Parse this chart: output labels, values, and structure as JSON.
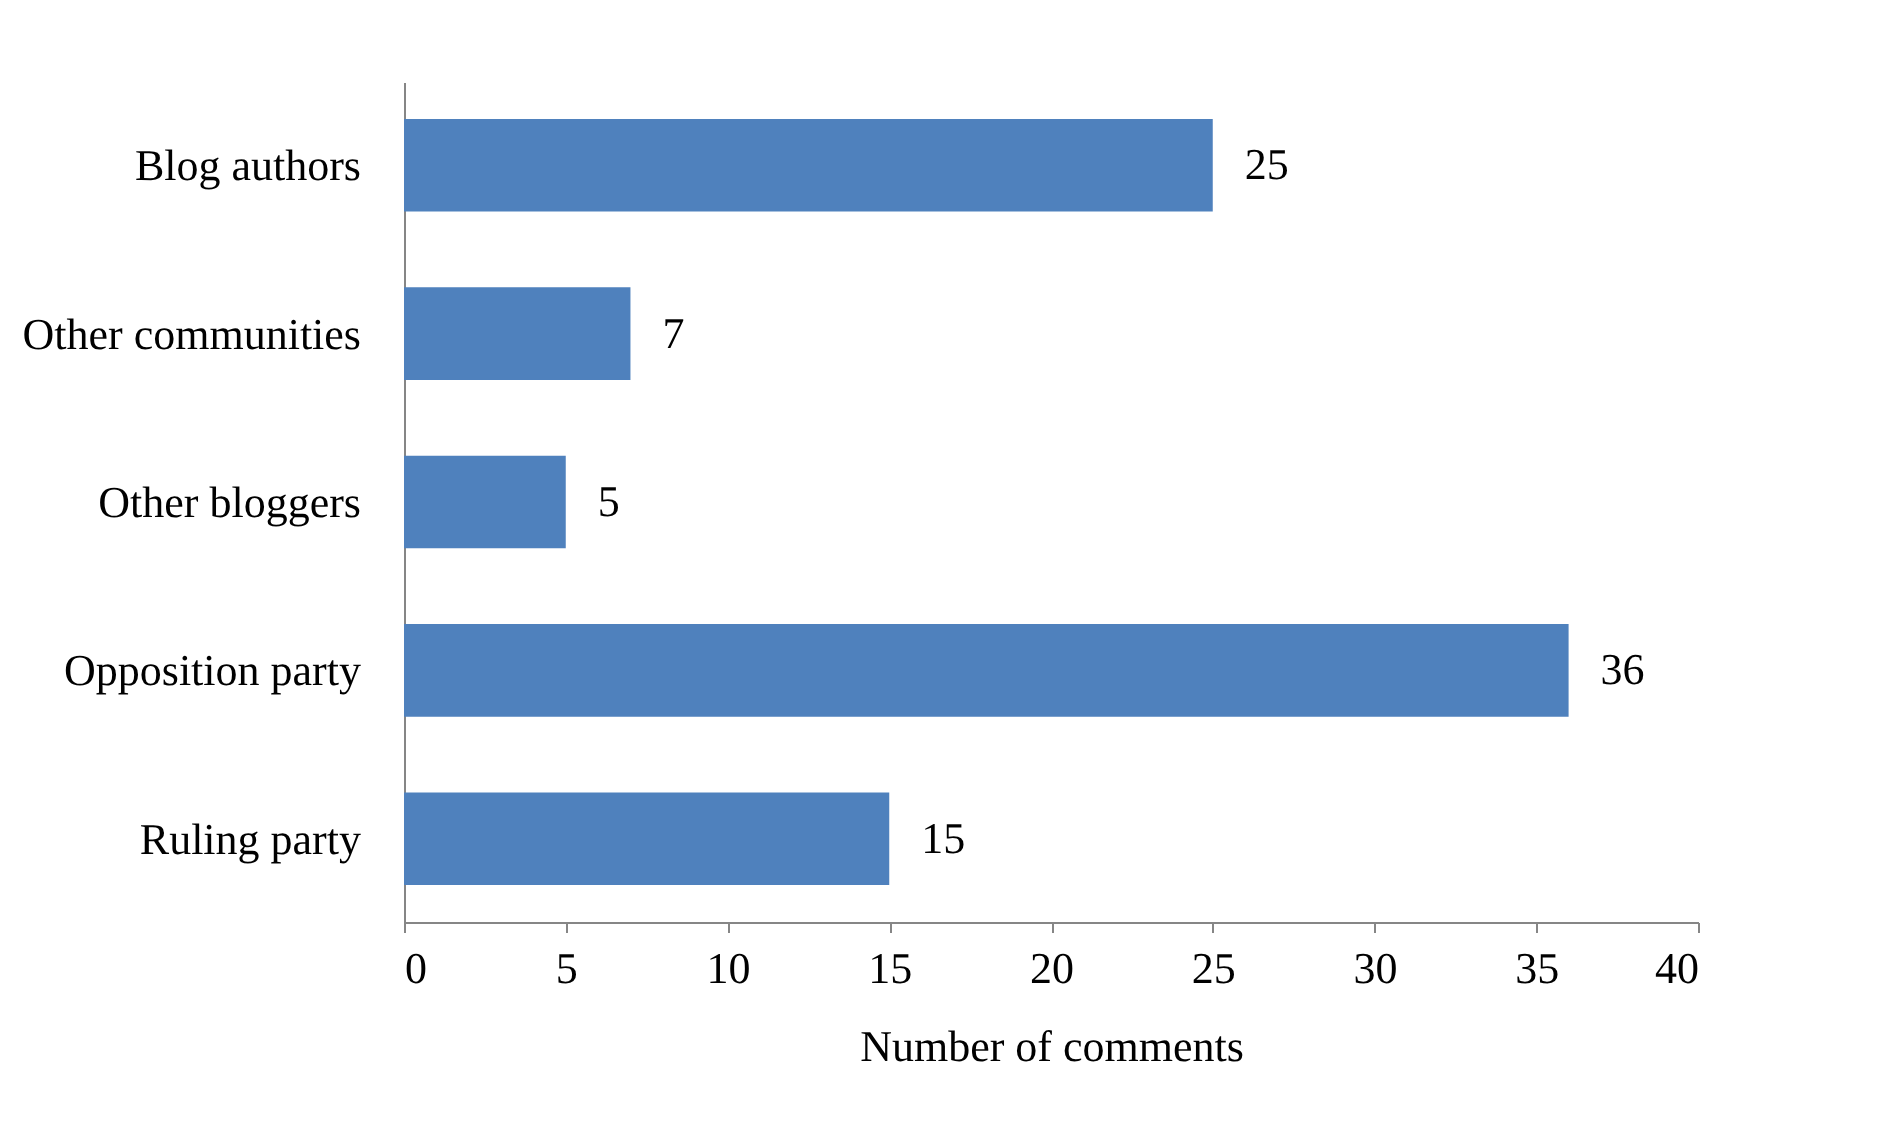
{
  "chart_data": {
    "type": "bar",
    "orientation": "horizontal",
    "xlabel": "Number of comments",
    "categories": [
      "Blog authors",
      "Other communities",
      "Other bloggers",
      "Opposition party",
      "Ruling party"
    ],
    "values": [
      25,
      7,
      5,
      36,
      15
    ],
    "color": "#4f81bd",
    "xlim": [
      0,
      40
    ],
    "xticks": [
      0,
      5,
      10,
      15,
      20,
      25,
      30,
      35,
      40
    ],
    "grid": false,
    "data_labels": true
  }
}
